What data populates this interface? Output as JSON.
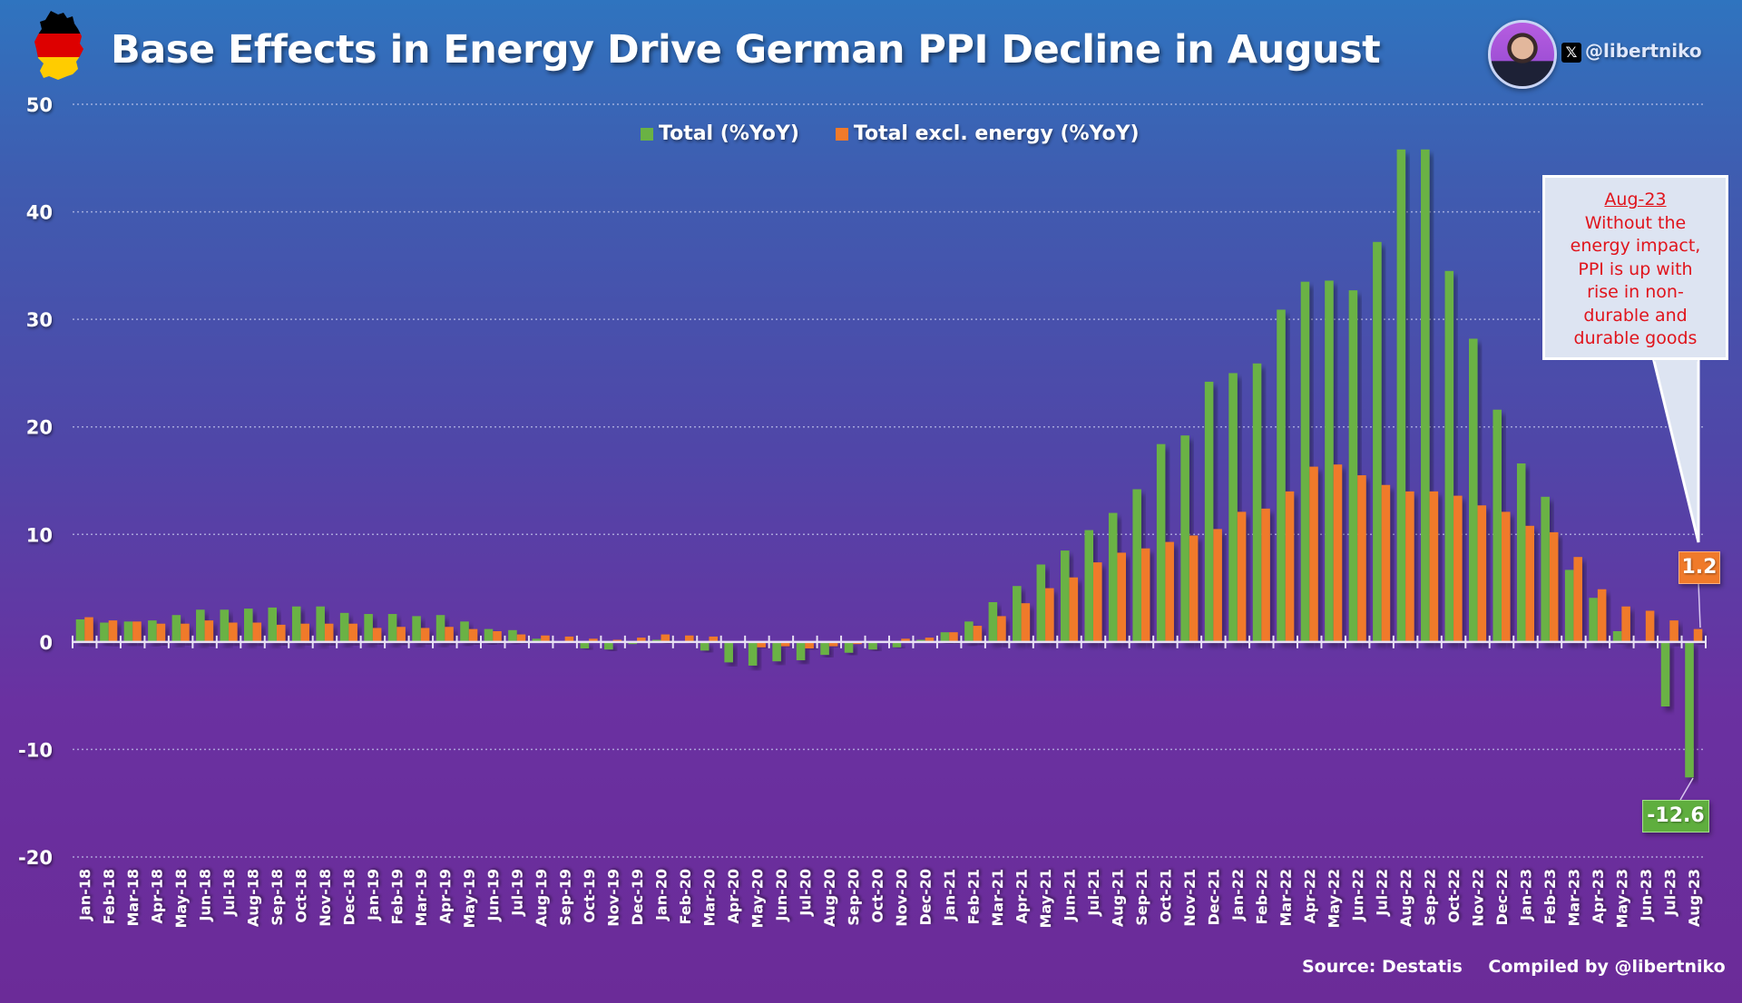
{
  "header": {
    "title": "Base Effects in Energy Drive German PPI Decline in August",
    "handle": "@libertniko",
    "x_icon": "x-logo-icon",
    "flag_icon": "germany-map-flag-icon",
    "avatar": "author-avatar"
  },
  "legend": {
    "items": [
      {
        "label": "Total (%YoY)",
        "color": "#6ab244"
      },
      {
        "label": "Total excl. energy (%YoY)",
        "color": "#f07a2a"
      }
    ]
  },
  "callout": {
    "title": "Aug-23",
    "lines": [
      "Without the",
      "energy impact,",
      "PPI is up with",
      "rise in non-",
      "durable and",
      "durable goods"
    ],
    "text_color": "#e0141c"
  },
  "value_labels": {
    "excl_energy_last": "1.2",
    "total_last": "-12.6"
  },
  "footer": {
    "source": "Source: Destatis",
    "compiled": "Compiled by @libertniko"
  },
  "chart_data": {
    "type": "bar",
    "title": "Base Effects in Energy Drive German PPI Decline in August",
    "xlabel": "",
    "ylabel": "",
    "ylim": [
      -20,
      50
    ],
    "yticks": [
      50,
      40,
      30,
      20,
      10,
      0,
      -10,
      -20
    ],
    "grid": true,
    "legend_position": "top-center",
    "categories": [
      "Jan-18",
      "Feb-18",
      "Mar-18",
      "Apr-18",
      "May-18",
      "Jun-18",
      "Jul-18",
      "Aug-18",
      "Sep-18",
      "Oct-18",
      "Nov-18",
      "Dec-18",
      "Jan-19",
      "Feb-19",
      "Mar-19",
      "Apr-19",
      "May-19",
      "Jun-19",
      "Jul-19",
      "Aug-19",
      "Sep-19",
      "Oct-19",
      "Nov-19",
      "Dec-19",
      "Jan-20",
      "Feb-20",
      "Mar-20",
      "Apr-20",
      "May-20",
      "Jun-20",
      "Jul-20",
      "Aug-20",
      "Sep-20",
      "Oct-20",
      "Nov-20",
      "Dec-20",
      "Jan-21",
      "Feb-21",
      "Mar-21",
      "Apr-21",
      "May-21",
      "Jun-21",
      "Jul-21",
      "Aug-21",
      "Sep-21",
      "Oct-21",
      "Nov-21",
      "Dec-21",
      "Jan-22",
      "Feb-22",
      "Mar-22",
      "Apr-22",
      "May-22",
      "Jun-22",
      "Jul-22",
      "Aug-22",
      "Sep-22",
      "Oct-22",
      "Nov-22",
      "Dec-22",
      "Jan-23",
      "Feb-23",
      "Mar-23",
      "Apr-23",
      "May-23",
      "Jun-23",
      "Jul-23",
      "Aug-23"
    ],
    "series": [
      {
        "name": "Total (%YoY)",
        "color": "#6ab244",
        "values": [
          2.1,
          1.8,
          1.9,
          2.0,
          2.5,
          3.0,
          3.0,
          3.1,
          3.2,
          3.3,
          3.3,
          2.7,
          2.6,
          2.6,
          2.4,
          2.5,
          1.9,
          1.2,
          1.1,
          0.3,
          -0.1,
          -0.6,
          -0.7,
          -0.2,
          0.2,
          0.0,
          -0.8,
          -1.9,
          -2.2,
          -1.8,
          -1.7,
          -1.2,
          -1.0,
          -0.7,
          -0.5,
          0.2,
          0.9,
          1.9,
          3.7,
          5.2,
          7.2,
          8.5,
          10.4,
          12.0,
          14.2,
          18.4,
          19.2,
          24.2,
          25.0,
          25.9,
          30.9,
          33.5,
          33.6,
          32.7,
          37.2,
          45.8,
          45.8,
          34.5,
          28.2,
          21.6,
          16.6,
          13.5,
          6.7,
          4.1,
          1.0,
          0.1,
          -6.0,
          -12.6
        ]
      },
      {
        "name": "Total excl. energy (%YoY)",
        "color": "#f07a2a",
        "values": [
          2.3,
          2.0,
          1.9,
          1.7,
          1.7,
          2.0,
          1.8,
          1.8,
          1.6,
          1.7,
          1.7,
          1.7,
          1.3,
          1.4,
          1.3,
          1.4,
          1.2,
          1.0,
          0.7,
          0.6,
          0.5,
          0.3,
          0.2,
          0.4,
          0.7,
          0.6,
          0.5,
          0.0,
          -0.5,
          -0.4,
          -0.6,
          -0.4,
          -0.2,
          0.0,
          0.3,
          0.4,
          0.9,
          1.5,
          2.4,
          3.6,
          5.0,
          6.0,
          7.4,
          8.3,
          8.7,
          9.3,
          9.9,
          10.5,
          12.1,
          12.4,
          14.0,
          16.3,
          16.5,
          15.5,
          14.6,
          14.0,
          14.0,
          13.6,
          12.7,
          12.1,
          10.8,
          10.2,
          7.9,
          4.9,
          3.3,
          2.9,
          2.0,
          1.2
        ]
      }
    ],
    "annotations": [
      {
        "text": "1.2",
        "series": "Total excl. energy (%YoY)",
        "category": "Aug-23"
      },
      {
        "text": "-12.6",
        "series": "Total (%YoY)",
        "category": "Aug-23"
      }
    ]
  }
}
